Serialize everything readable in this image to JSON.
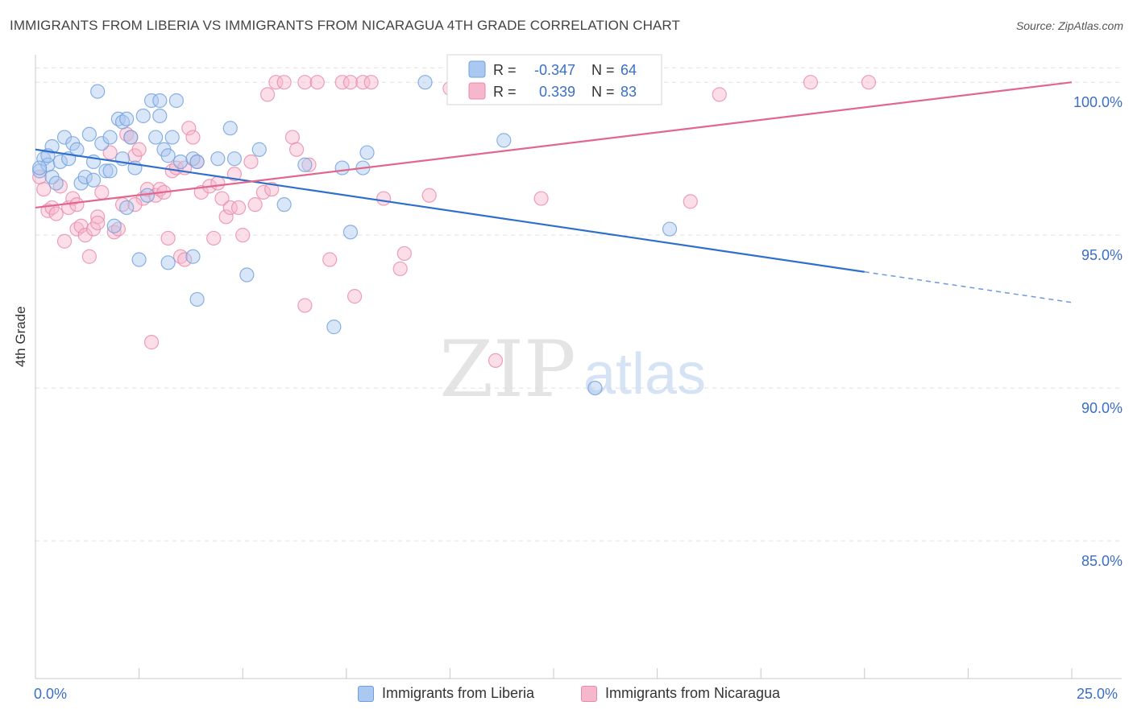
{
  "title": "IMMIGRANTS FROM LIBERIA VS IMMIGRANTS FROM NICARAGUA 4TH GRADE CORRELATION CHART",
  "source": "Source: ZipAtlas.com",
  "watermark": {
    "zip": "ZIP",
    "atlas": "atlas"
  },
  "colors": {
    "blue_fill": "#aac8f0",
    "blue_stroke": "#6f9fdc",
    "blue_line": "#2f6fcc",
    "pink_fill": "#f6b6cb",
    "pink_stroke": "#e88aa8",
    "pink_line": "#e2678f",
    "axis_text": "#3a6ec8",
    "grid": "#e0e0e0"
  },
  "legend_top": {
    "rows": [
      {
        "r_label": "R =",
        "r_value": "-0.347",
        "n_label": "N =",
        "n_value": "64",
        "series": "liberia"
      },
      {
        "r_label": "R =",
        "r_value": "0.339",
        "n_label": "N =",
        "n_value": "83",
        "series": "nicaragua"
      }
    ]
  },
  "legend_bottom": [
    {
      "label": "Immigrants from Liberia",
      "series": "liberia"
    },
    {
      "label": "Immigrants from Nicaragua",
      "series": "nicaragua"
    }
  ],
  "chart_data": {
    "type": "scatter",
    "title": "IMMIGRANTS FROM LIBERIA VS IMMIGRANTS FROM NICARAGUA 4TH GRADE CORRELATION CHART",
    "xlabel": "",
    "ylabel": "4th Grade",
    "xlim": [
      0,
      25
    ],
    "ylim": [
      80.5,
      100.9
    ],
    "x_tick_labels": [
      "0.0%",
      "25.0%"
    ],
    "y_ticks": [
      100,
      95,
      90,
      85
    ],
    "y_tick_labels": [
      "100.0%",
      "95.0%",
      "90.0%",
      "85.0%"
    ],
    "series": [
      {
        "name": "Immigrants from Liberia",
        "key": "liberia",
        "R": -0.347,
        "N": 64,
        "trend": {
          "x0": 0,
          "y0": 97.8,
          "x1": 20.0,
          "y1": 93.8,
          "dash_to_x": 25.0,
          "dash_to_y": 92.8
        },
        "points": [
          [
            0.1,
            97.1
          ],
          [
            0.2,
            97.5
          ],
          [
            0.3,
            97.3
          ],
          [
            0.4,
            96.9
          ],
          [
            0.4,
            97.9
          ],
          [
            0.5,
            96.7
          ],
          [
            0.6,
            97.4
          ],
          [
            0.7,
            98.2
          ],
          [
            0.8,
            97.5
          ],
          [
            0.9,
            98.0
          ],
          [
            1.0,
            97.8
          ],
          [
            1.1,
            96.7
          ],
          [
            1.2,
            96.9
          ],
          [
            1.3,
            98.3
          ],
          [
            1.4,
            96.8
          ],
          [
            1.4,
            97.4
          ],
          [
            1.5,
            99.7
          ],
          [
            1.6,
            98.0
          ],
          [
            1.7,
            97.1
          ],
          [
            1.8,
            98.2
          ],
          [
            1.9,
            95.3
          ],
          [
            2.0,
            98.8
          ],
          [
            2.1,
            98.7
          ],
          [
            2.2,
            98.8
          ],
          [
            2.1,
            97.5
          ],
          [
            2.2,
            95.9
          ],
          [
            2.3,
            98.2
          ],
          [
            2.4,
            97.2
          ],
          [
            2.5,
            94.2
          ],
          [
            2.6,
            98.9
          ],
          [
            2.7,
            96.3
          ],
          [
            2.8,
            99.4
          ],
          [
            2.9,
            98.2
          ],
          [
            3.0,
            99.4
          ],
          [
            3.0,
            98.9
          ],
          [
            3.1,
            97.8
          ],
          [
            3.2,
            97.6
          ],
          [
            3.2,
            94.1
          ],
          [
            3.3,
            98.2
          ],
          [
            3.4,
            99.4
          ],
          [
            3.5,
            97.4
          ],
          [
            3.8,
            97.5
          ],
          [
            3.9,
            97.4
          ],
          [
            3.8,
            94.3
          ],
          [
            3.9,
            92.9
          ],
          [
            4.4,
            97.5
          ],
          [
            4.7,
            98.5
          ],
          [
            4.8,
            97.5
          ],
          [
            5.1,
            93.7
          ],
          [
            5.4,
            97.8
          ],
          [
            6.0,
            96.0
          ],
          [
            6.5,
            97.3
          ],
          [
            7.2,
            92.0
          ],
          [
            7.4,
            97.2
          ],
          [
            7.6,
            95.1
          ],
          [
            7.9,
            97.2
          ],
          [
            8.0,
            97.7
          ],
          [
            9.4,
            100.0
          ],
          [
            11.3,
            98.1
          ],
          [
            13.5,
            90.0
          ],
          [
            15.3,
            95.2
          ],
          [
            0.1,
            97.2
          ],
          [
            0.3,
            97.6
          ],
          [
            1.8,
            97.1
          ]
        ]
      },
      {
        "name": "Immigrants from Nicaragua",
        "key": "nicaragua",
        "R": 0.339,
        "N": 83,
        "trend": {
          "x0": 0,
          "y0": 95.9,
          "x1": 25.0,
          "y1": 100.0
        },
        "points": [
          [
            0.2,
            96.5
          ],
          [
            0.3,
            95.8
          ],
          [
            0.4,
            95.9
          ],
          [
            0.5,
            95.7
          ],
          [
            0.6,
            96.6
          ],
          [
            0.7,
            94.8
          ],
          [
            0.8,
            95.9
          ],
          [
            0.9,
            96.2
          ],
          [
            1.0,
            95.2
          ],
          [
            1.1,
            95.3
          ],
          [
            1.2,
            95.0
          ],
          [
            1.3,
            94.3
          ],
          [
            1.4,
            95.2
          ],
          [
            1.5,
            95.6
          ],
          [
            1.5,
            95.4
          ],
          [
            1.6,
            96.4
          ],
          [
            1.8,
            97.7
          ],
          [
            1.9,
            95.1
          ],
          [
            2.0,
            95.2
          ],
          [
            2.1,
            96.0
          ],
          [
            2.2,
            98.3
          ],
          [
            2.3,
            98.2
          ],
          [
            2.4,
            97.6
          ],
          [
            2.5,
            97.8
          ],
          [
            2.6,
            96.2
          ],
          [
            2.7,
            96.5
          ],
          [
            2.8,
            91.5
          ],
          [
            2.9,
            96.3
          ],
          [
            3.0,
            96.5
          ],
          [
            3.1,
            96.4
          ],
          [
            3.2,
            94.9
          ],
          [
            3.3,
            97.1
          ],
          [
            3.4,
            97.2
          ],
          [
            3.5,
            94.3
          ],
          [
            3.6,
            94.2
          ],
          [
            3.7,
            98.5
          ],
          [
            3.8,
            98.2
          ],
          [
            3.9,
            97.4
          ],
          [
            4.0,
            96.4
          ],
          [
            4.2,
            96.6
          ],
          [
            4.3,
            94.9
          ],
          [
            4.4,
            96.7
          ],
          [
            4.5,
            96.2
          ],
          [
            4.6,
            95.6
          ],
          [
            4.7,
            95.9
          ],
          [
            4.8,
            97.0
          ],
          [
            4.9,
            95.9
          ],
          [
            5.0,
            95.0
          ],
          [
            5.2,
            97.4
          ],
          [
            5.3,
            96.0
          ],
          [
            5.5,
            96.4
          ],
          [
            5.6,
            99.6
          ],
          [
            5.7,
            96.5
          ],
          [
            5.8,
            100.0
          ],
          [
            6.0,
            100.0
          ],
          [
            6.2,
            98.2
          ],
          [
            6.3,
            97.8
          ],
          [
            6.5,
            100.0
          ],
          [
            6.6,
            97.3
          ],
          [
            6.5,
            92.7
          ],
          [
            6.8,
            100.0
          ],
          [
            7.1,
            94.2
          ],
          [
            7.4,
            100.0
          ],
          [
            7.6,
            100.0
          ],
          [
            7.7,
            93.0
          ],
          [
            7.9,
            100.0
          ],
          [
            8.1,
            100.0
          ],
          [
            8.4,
            96.2
          ],
          [
            8.8,
            93.9
          ],
          [
            8.9,
            94.4
          ],
          [
            9.5,
            96.3
          ],
          [
            10.0,
            99.8
          ],
          [
            10.3,
            100.0
          ],
          [
            11.1,
            90.9
          ],
          [
            12.2,
            96.2
          ],
          [
            15.8,
            96.1
          ],
          [
            16.5,
            99.6
          ],
          [
            18.7,
            100.0
          ],
          [
            20.1,
            100.0
          ],
          [
            0.1,
            96.9
          ],
          [
            1.0,
            96.0
          ],
          [
            2.4,
            96.0
          ],
          [
            3.6,
            97.2
          ]
        ]
      }
    ]
  }
}
